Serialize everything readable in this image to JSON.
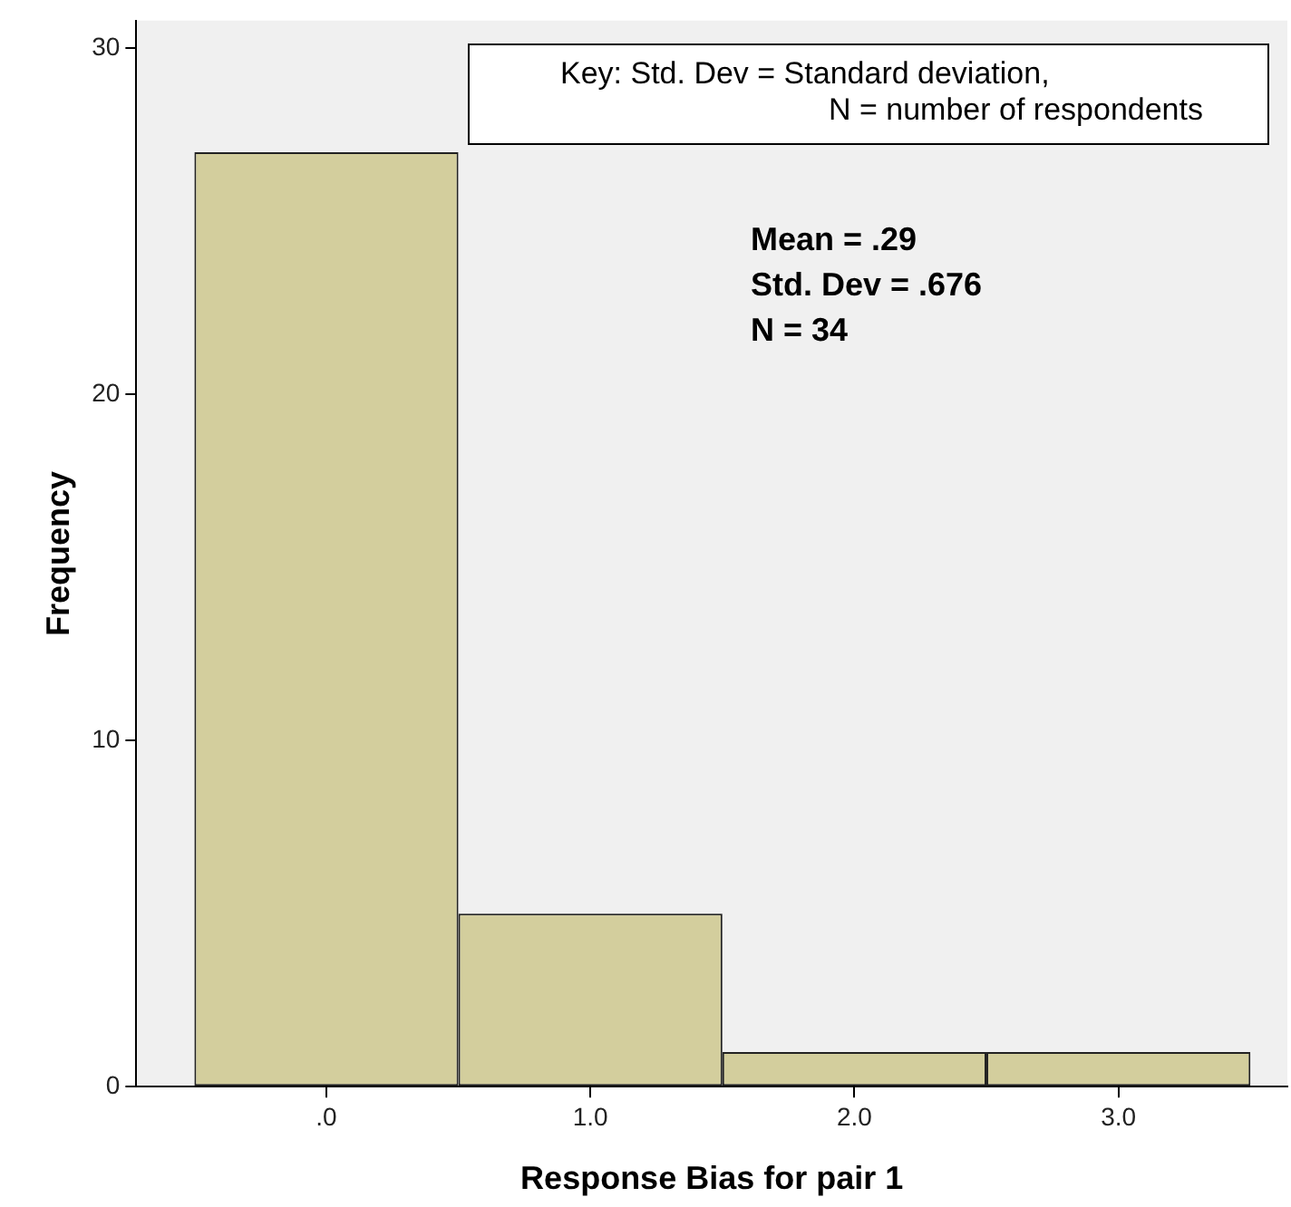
{
  "chart_data": {
    "type": "histogram",
    "xlabel": "Response Bias for pair 1",
    "ylabel": "Frequency",
    "bins": [
      -0.5,
      0.5,
      1.5,
      2.5,
      3.5
    ],
    "values": [
      27,
      5,
      1,
      1
    ],
    "color": "#d3ce9d",
    "xlim": [
      -0.72,
      3.64
    ],
    "xticks": [
      {
        "value": 0,
        "label": ".0"
      },
      {
        "value": 1,
        "label": "1.0"
      },
      {
        "value": 2,
        "label": "2.0"
      },
      {
        "value": 3,
        "label": "3.0"
      }
    ],
    "ylim": [
      0,
      30.8
    ],
    "yticks": [
      0,
      10,
      20,
      30
    ],
    "grid": false,
    "legend": false,
    "annotations": [
      "Key: Std. Dev = Standard deviation,",
      "N = number of respondents",
      "Mean = .29",
      "Std. Dev = .676",
      "N = 34"
    ]
  }
}
